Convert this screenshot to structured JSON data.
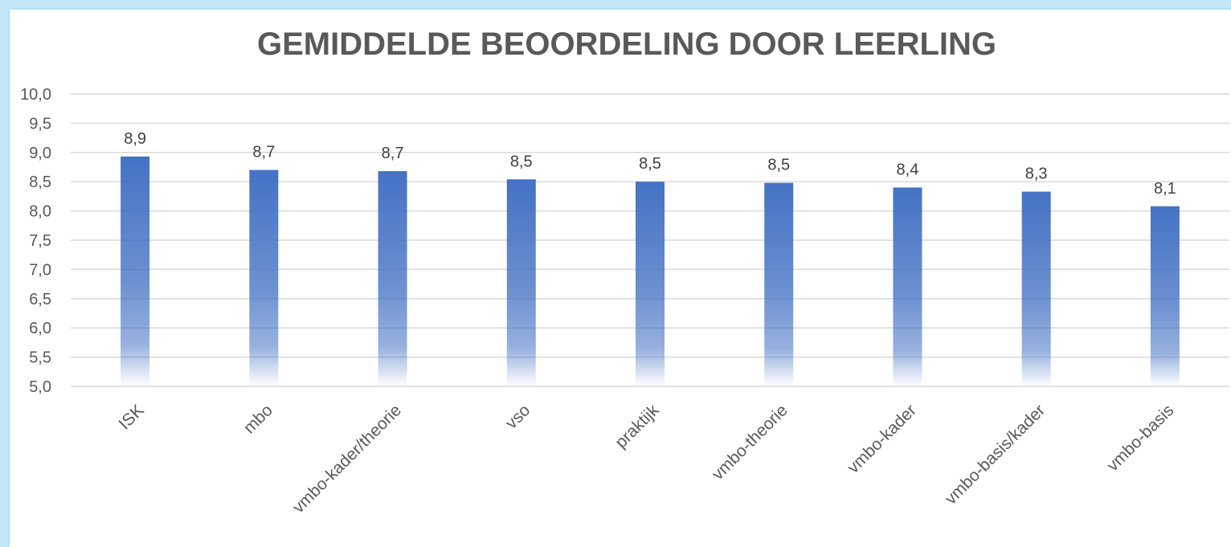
{
  "chart_data": {
    "type": "bar",
    "title": "GEMIDDELDE BEOORDELING DOOR LEERLING",
    "xlabel": "",
    "ylabel": "",
    "categories": [
      "ISK",
      "mbo",
      "vmbo-kader/theorie",
      "vso",
      "praktijk",
      "vmbo-theorie",
      "vmbo-kader",
      "vmbo-basis/kader",
      "vmbo-basis"
    ],
    "values": [
      8.93,
      8.7,
      8.68,
      8.54,
      8.5,
      8.48,
      8.4,
      8.33,
      8.08
    ],
    "value_labels": [
      "8,9",
      "8,7",
      "8,7",
      "8,5",
      "8,5",
      "8,5",
      "8,4",
      "8,3",
      "8,1"
    ],
    "ylim": [
      5.0,
      10.0
    ],
    "yticks": [
      5.0,
      5.5,
      6.0,
      6.5,
      7.0,
      7.5,
      8.0,
      8.5,
      9.0,
      9.5,
      10.0
    ],
    "ytick_labels": [
      "5,0",
      "5,5",
      "6,0",
      "6,5",
      "7,0",
      "7,5",
      "8,0",
      "8,5",
      "9,0",
      "9,5",
      "10,0"
    ],
    "grid": true,
    "legend": "none",
    "colors": {
      "bar_top": "#4472c4",
      "bar_bottom": "#ffffff",
      "grid": "#d9d9d9",
      "text": "#595959",
      "frame_border": "#c4e7f8"
    }
  }
}
